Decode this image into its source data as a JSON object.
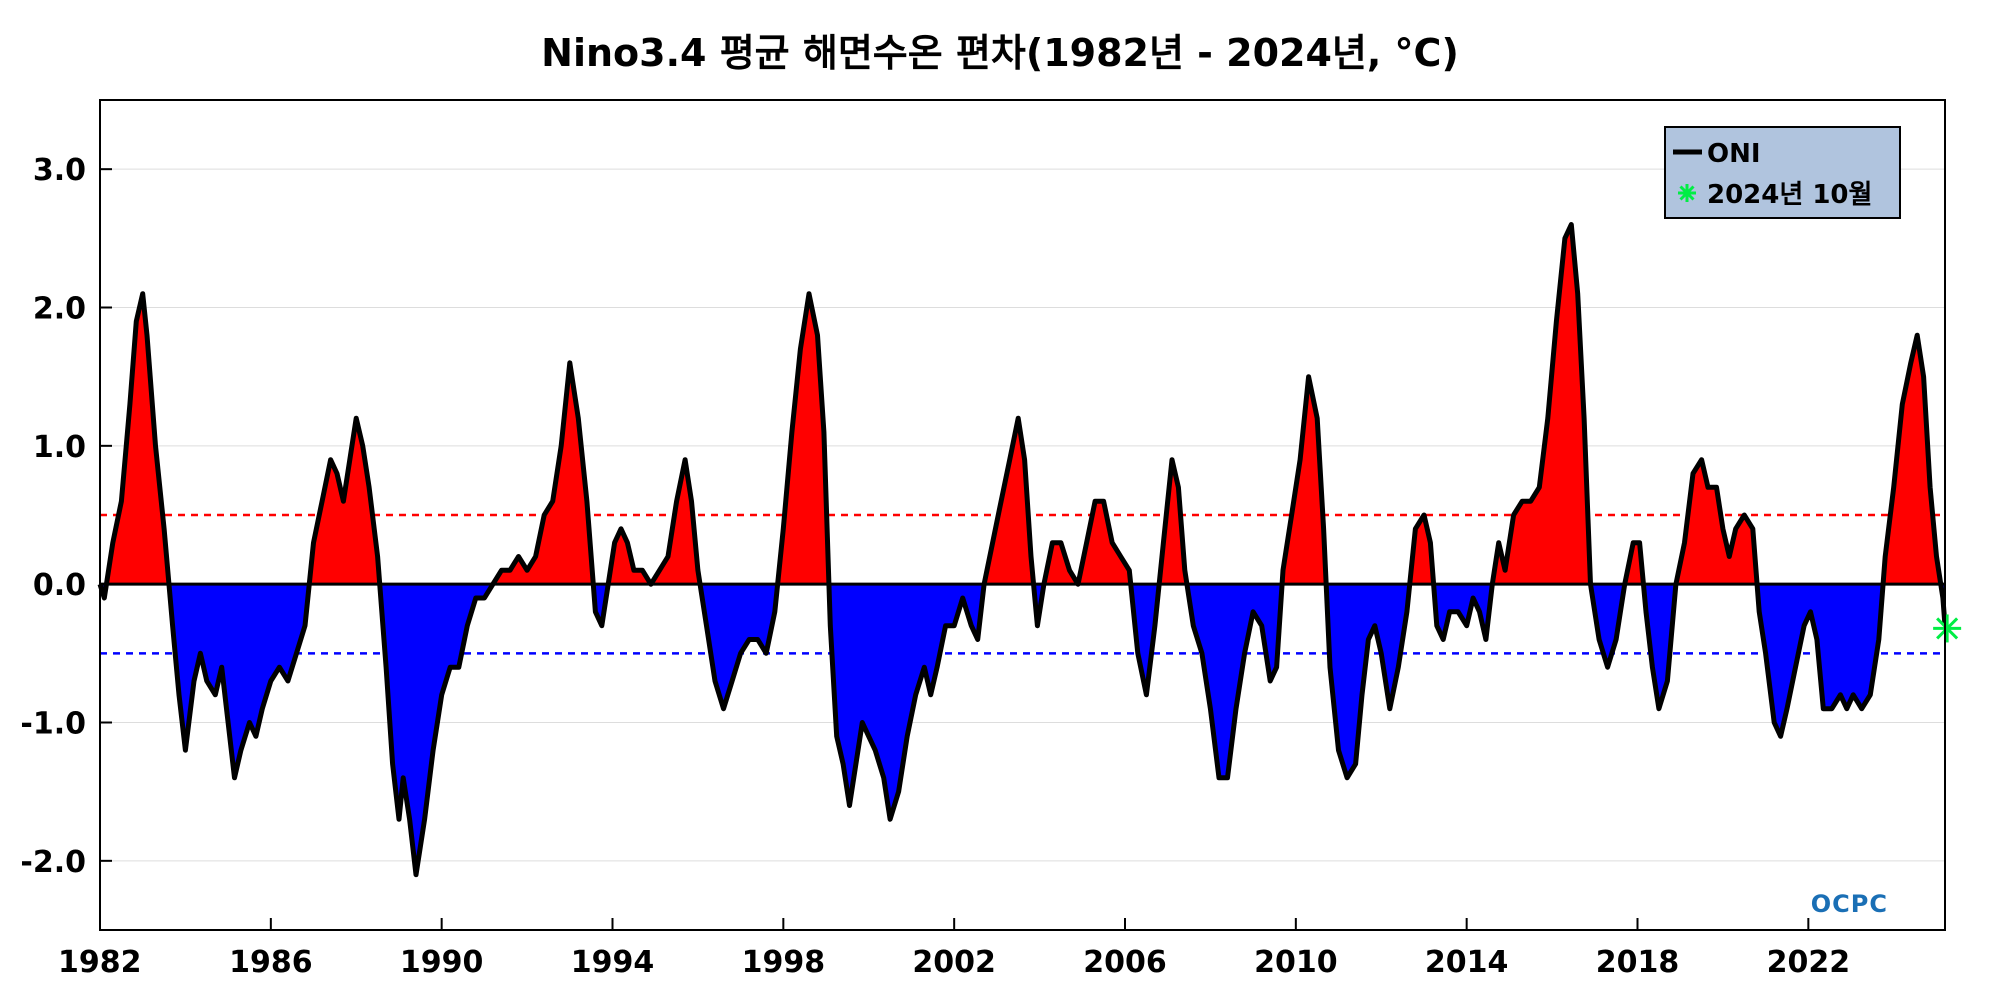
{
  "chart_data": {
    "type": "area",
    "title": "Nino3.4 평균 해면수온 편차(1982년 - 2024년, °C)",
    "xlabel": "",
    "ylabel": "",
    "xlim": [
      1982,
      2025.2
    ],
    "ylim": [
      -2.5,
      3.5
    ],
    "y_ticks": [
      -2.0,
      -1.0,
      0.0,
      1.0,
      2.0,
      3.0
    ],
    "y_tick_labels": [
      "-2.0",
      "-1.0",
      "0.0",
      "1.0",
      "2.0",
      "3.0"
    ],
    "x_ticks": [
      1982,
      1986,
      1990,
      1994,
      1998,
      2002,
      2006,
      2010,
      2014,
      2018,
      2022
    ],
    "x_tick_labels": [
      "1982",
      "1986",
      "1990",
      "1994",
      "1998",
      "2002",
      "2006",
      "2010",
      "2014",
      "2018",
      "2022"
    ],
    "grid": true,
    "thresholds": [
      {
        "value": 0.5,
        "color": "#ff0000",
        "style": "dashed"
      },
      {
        "value": -0.5,
        "color": "#0000ff",
        "style": "dashed"
      }
    ],
    "fill_colors": {
      "positive": "#ff0000",
      "negative": "#0000ff"
    },
    "series": [
      {
        "name": "ONI",
        "color": "#000000",
        "points": [
          [
            1982.0,
            0.0
          ],
          [
            1982.1,
            -0.1
          ],
          [
            1982.3,
            0.3
          ],
          [
            1982.5,
            0.6
          ],
          [
            1982.7,
            1.3
          ],
          [
            1982.85,
            1.9
          ],
          [
            1983.0,
            2.1
          ],
          [
            1983.1,
            1.8
          ],
          [
            1983.3,
            1.0
          ],
          [
            1983.5,
            0.4
          ],
          [
            1983.7,
            -0.3
          ],
          [
            1983.85,
            -0.8
          ],
          [
            1984.0,
            -1.2
          ],
          [
            1984.2,
            -0.7
          ],
          [
            1984.35,
            -0.5
          ],
          [
            1984.5,
            -0.7
          ],
          [
            1984.7,
            -0.8
          ],
          [
            1984.85,
            -0.6
          ],
          [
            1985.0,
            -1.0
          ],
          [
            1985.15,
            -1.4
          ],
          [
            1985.3,
            -1.2
          ],
          [
            1985.5,
            -1.0
          ],
          [
            1985.65,
            -1.1
          ],
          [
            1985.8,
            -0.9
          ],
          [
            1986.0,
            -0.7
          ],
          [
            1986.2,
            -0.6
          ],
          [
            1986.4,
            -0.7
          ],
          [
            1986.6,
            -0.5
          ],
          [
            1986.8,
            -0.3
          ],
          [
            1987.0,
            0.3
          ],
          [
            1987.2,
            0.6
          ],
          [
            1987.4,
            0.9
          ],
          [
            1987.55,
            0.8
          ],
          [
            1987.7,
            0.6
          ],
          [
            1987.85,
            0.9
          ],
          [
            1988.0,
            1.2
          ],
          [
            1988.15,
            1.0
          ],
          [
            1988.3,
            0.7
          ],
          [
            1988.5,
            0.2
          ],
          [
            1988.7,
            -0.6
          ],
          [
            1988.85,
            -1.3
          ],
          [
            1989.0,
            -1.7
          ],
          [
            1989.1,
            -1.4
          ],
          [
            1989.25,
            -1.7
          ],
          [
            1989.4,
            -2.1
          ],
          [
            1989.6,
            -1.7
          ],
          [
            1989.8,
            -1.2
          ],
          [
            1990.0,
            -0.8
          ],
          [
            1990.2,
            -0.6
          ],
          [
            1990.4,
            -0.6
          ],
          [
            1990.6,
            -0.3
          ],
          [
            1990.8,
            -0.1
          ],
          [
            1991.0,
            -0.1
          ],
          [
            1991.2,
            0.0
          ],
          [
            1991.4,
            0.1
          ],
          [
            1991.6,
            0.1
          ],
          [
            1991.8,
            0.2
          ],
          [
            1992.0,
            0.1
          ],
          [
            1992.2,
            0.2
          ],
          [
            1992.4,
            0.5
          ],
          [
            1992.6,
            0.6
          ],
          [
            1992.8,
            1.0
          ],
          [
            1993.0,
            1.6
          ],
          [
            1993.2,
            1.2
          ],
          [
            1993.4,
            0.6
          ],
          [
            1993.6,
            -0.2
          ],
          [
            1993.75,
            -0.3
          ],
          [
            1993.9,
            0.0
          ],
          [
            1994.05,
            0.3
          ],
          [
            1994.2,
            0.4
          ],
          [
            1994.35,
            0.3
          ],
          [
            1994.5,
            0.1
          ],
          [
            1994.7,
            0.1
          ],
          [
            1994.9,
            0.0
          ],
          [
            1995.1,
            0.1
          ],
          [
            1995.3,
            0.2
          ],
          [
            1995.5,
            0.6
          ],
          [
            1995.7,
            0.9
          ],
          [
            1995.85,
            0.6
          ],
          [
            1996.0,
            0.1
          ],
          [
            1996.2,
            -0.3
          ],
          [
            1996.4,
            -0.7
          ],
          [
            1996.6,
            -0.9
          ],
          [
            1996.8,
            -0.7
          ],
          [
            1997.0,
            -0.5
          ],
          [
            1997.2,
            -0.4
          ],
          [
            1997.4,
            -0.4
          ],
          [
            1997.6,
            -0.5
          ],
          [
            1997.8,
            -0.2
          ],
          [
            1998.0,
            0.4
          ],
          [
            1998.2,
            1.1
          ],
          [
            1998.4,
            1.7
          ],
          [
            1998.6,
            2.1
          ],
          [
            1998.8,
            1.8
          ],
          [
            1998.95,
            1.1
          ],
          [
            1999.1,
            -0.3
          ],
          [
            1999.25,
            -1.1
          ],
          [
            1999.4,
            -1.3
          ],
          [
            1999.55,
            -1.6
          ],
          [
            1999.7,
            -1.3
          ],
          [
            1999.85,
            -1.0
          ],
          [
            2000.0,
            -1.1
          ],
          [
            2000.15,
            -1.2
          ],
          [
            2000.35,
            -1.4
          ],
          [
            2000.5,
            -1.7
          ],
          [
            2000.7,
            -1.5
          ],
          [
            2000.9,
            -1.1
          ],
          [
            2001.1,
            -0.8
          ],
          [
            2001.3,
            -0.6
          ],
          [
            2001.45,
            -0.8
          ],
          [
            2001.6,
            -0.6
          ],
          [
            2001.8,
            -0.3
          ],
          [
            2002.0,
            -0.3
          ],
          [
            2002.2,
            -0.1
          ],
          [
            2002.4,
            -0.3
          ],
          [
            2002.55,
            -0.4
          ],
          [
            2002.7,
            0.0
          ],
          [
            2002.9,
            0.3
          ],
          [
            2003.1,
            0.6
          ],
          [
            2003.3,
            0.9
          ],
          [
            2003.5,
            1.2
          ],
          [
            2003.65,
            0.9
          ],
          [
            2003.8,
            0.2
          ],
          [
            2003.95,
            -0.3
          ],
          [
            2004.1,
            0.0
          ],
          [
            2004.3,
            0.3
          ],
          [
            2004.5,
            0.3
          ],
          [
            2004.7,
            0.1
          ],
          [
            2004.9,
            0.0
          ],
          [
            2005.1,
            0.3
          ],
          [
            2005.3,
            0.6
          ],
          [
            2005.5,
            0.6
          ],
          [
            2005.7,
            0.3
          ],
          [
            2005.9,
            0.2
          ],
          [
            2006.1,
            0.1
          ],
          [
            2006.3,
            -0.5
          ],
          [
            2006.5,
            -0.8
          ],
          [
            2006.7,
            -0.3
          ],
          [
            2006.9,
            0.3
          ],
          [
            2007.1,
            0.9
          ],
          [
            2007.25,
            0.7
          ],
          [
            2007.4,
            0.1
          ],
          [
            2007.6,
            -0.3
          ],
          [
            2007.8,
            -0.5
          ],
          [
            2008.0,
            -0.9
          ],
          [
            2008.2,
            -1.4
          ],
          [
            2008.4,
            -1.4
          ],
          [
            2008.6,
            -0.9
          ],
          [
            2008.8,
            -0.5
          ],
          [
            2009.0,
            -0.2
          ],
          [
            2009.2,
            -0.3
          ],
          [
            2009.4,
            -0.7
          ],
          [
            2009.55,
            -0.6
          ],
          [
            2009.7,
            0.1
          ],
          [
            2009.9,
            0.5
          ],
          [
            2010.1,
            0.9
          ],
          [
            2010.3,
            1.5
          ],
          [
            2010.5,
            1.2
          ],
          [
            2010.65,
            0.4
          ],
          [
            2010.8,
            -0.6
          ],
          [
            2011.0,
            -1.2
          ],
          [
            2011.2,
            -1.4
          ],
          [
            2011.4,
            -1.3
          ],
          [
            2011.55,
            -0.8
          ],
          [
            2011.7,
            -0.4
          ],
          [
            2011.85,
            -0.3
          ],
          [
            2012.0,
            -0.5
          ],
          [
            2012.2,
            -0.9
          ],
          [
            2012.4,
            -0.6
          ],
          [
            2012.6,
            -0.2
          ],
          [
            2012.8,
            0.4
          ],
          [
            2013.0,
            0.5
          ],
          [
            2013.15,
            0.3
          ],
          [
            2013.3,
            -0.3
          ],
          [
            2013.45,
            -0.4
          ],
          [
            2013.6,
            -0.2
          ],
          [
            2013.8,
            -0.2
          ],
          [
            2014.0,
            -0.3
          ],
          [
            2014.15,
            -0.1
          ],
          [
            2014.3,
            -0.2
          ],
          [
            2014.45,
            -0.4
          ],
          [
            2014.6,
            0.0
          ],
          [
            2014.75,
            0.3
          ],
          [
            2014.9,
            0.1
          ],
          [
            2015.1,
            0.5
          ],
          [
            2015.3,
            0.6
          ],
          [
            2015.5,
            0.6
          ],
          [
            2015.7,
            0.7
          ],
          [
            2015.9,
            1.2
          ],
          [
            2016.1,
            1.9
          ],
          [
            2016.3,
            2.5
          ],
          [
            2016.45,
            2.6
          ],
          [
            2016.6,
            2.1
          ],
          [
            2016.75,
            1.2
          ],
          [
            2016.9,
            0.0
          ],
          [
            2017.1,
            -0.4
          ],
          [
            2017.3,
            -0.6
          ],
          [
            2017.5,
            -0.4
          ],
          [
            2017.7,
            0.0
          ],
          [
            2017.9,
            0.3
          ],
          [
            2018.05,
            0.3
          ],
          [
            2018.2,
            -0.2
          ],
          [
            2018.35,
            -0.6
          ],
          [
            2018.5,
            -0.9
          ],
          [
            2018.7,
            -0.7
          ],
          [
            2018.9,
            0.0
          ],
          [
            2019.1,
            0.3
          ],
          [
            2019.3,
            0.8
          ],
          [
            2019.5,
            0.9
          ],
          [
            2019.65,
            0.7
          ],
          [
            2019.85,
            0.7
          ],
          [
            2020.0,
            0.4
          ],
          [
            2020.15,
            0.2
          ],
          [
            2020.3,
            0.4
          ],
          [
            2020.5,
            0.5
          ],
          [
            2020.7,
            0.4
          ],
          [
            2020.85,
            -0.2
          ],
          [
            2021.0,
            -0.5
          ],
          [
            2021.2,
            -1.0
          ],
          [
            2021.35,
            -1.1
          ],
          [
            2021.5,
            -0.9
          ],
          [
            2021.7,
            -0.6
          ],
          [
            2021.9,
            -0.3
          ],
          [
            2022.05,
            -0.2
          ],
          [
            2022.2,
            -0.4
          ],
          [
            2022.35,
            -0.9
          ],
          [
            2022.55,
            -0.9
          ],
          [
            2022.75,
            -0.8
          ],
          [
            2022.9,
            -0.9
          ],
          [
            2023.05,
            -0.8
          ],
          [
            2023.25,
            -0.9
          ],
          [
            2023.45,
            -0.8
          ],
          [
            2023.65,
            -0.4
          ],
          [
            2023.8,
            0.2
          ],
          [
            2024.0,
            0.7
          ],
          [
            2024.2,
            1.3
          ],
          [
            2024.4,
            1.6
          ],
          [
            2024.55,
            1.8
          ],
          [
            2024.7,
            1.5
          ],
          [
            2024.85,
            0.7
          ],
          [
            2025.0,
            0.2
          ],
          [
            2025.15,
            -0.1
          ],
          [
            2025.2,
            -0.3
          ]
        ]
      }
    ],
    "marker": {
      "label": "2024년 10월",
      "x": 2025.25,
      "y": -0.32,
      "color": "#00ee44"
    },
    "legend": {
      "position": "top-right",
      "background": "#b0c4de",
      "items": [
        {
          "label": "ONI",
          "kind": "line",
          "color": "#000000"
        },
        {
          "label": "2024년 10월",
          "kind": "marker",
          "color": "#00ee44"
        }
      ]
    },
    "logo": "OCPC"
  }
}
